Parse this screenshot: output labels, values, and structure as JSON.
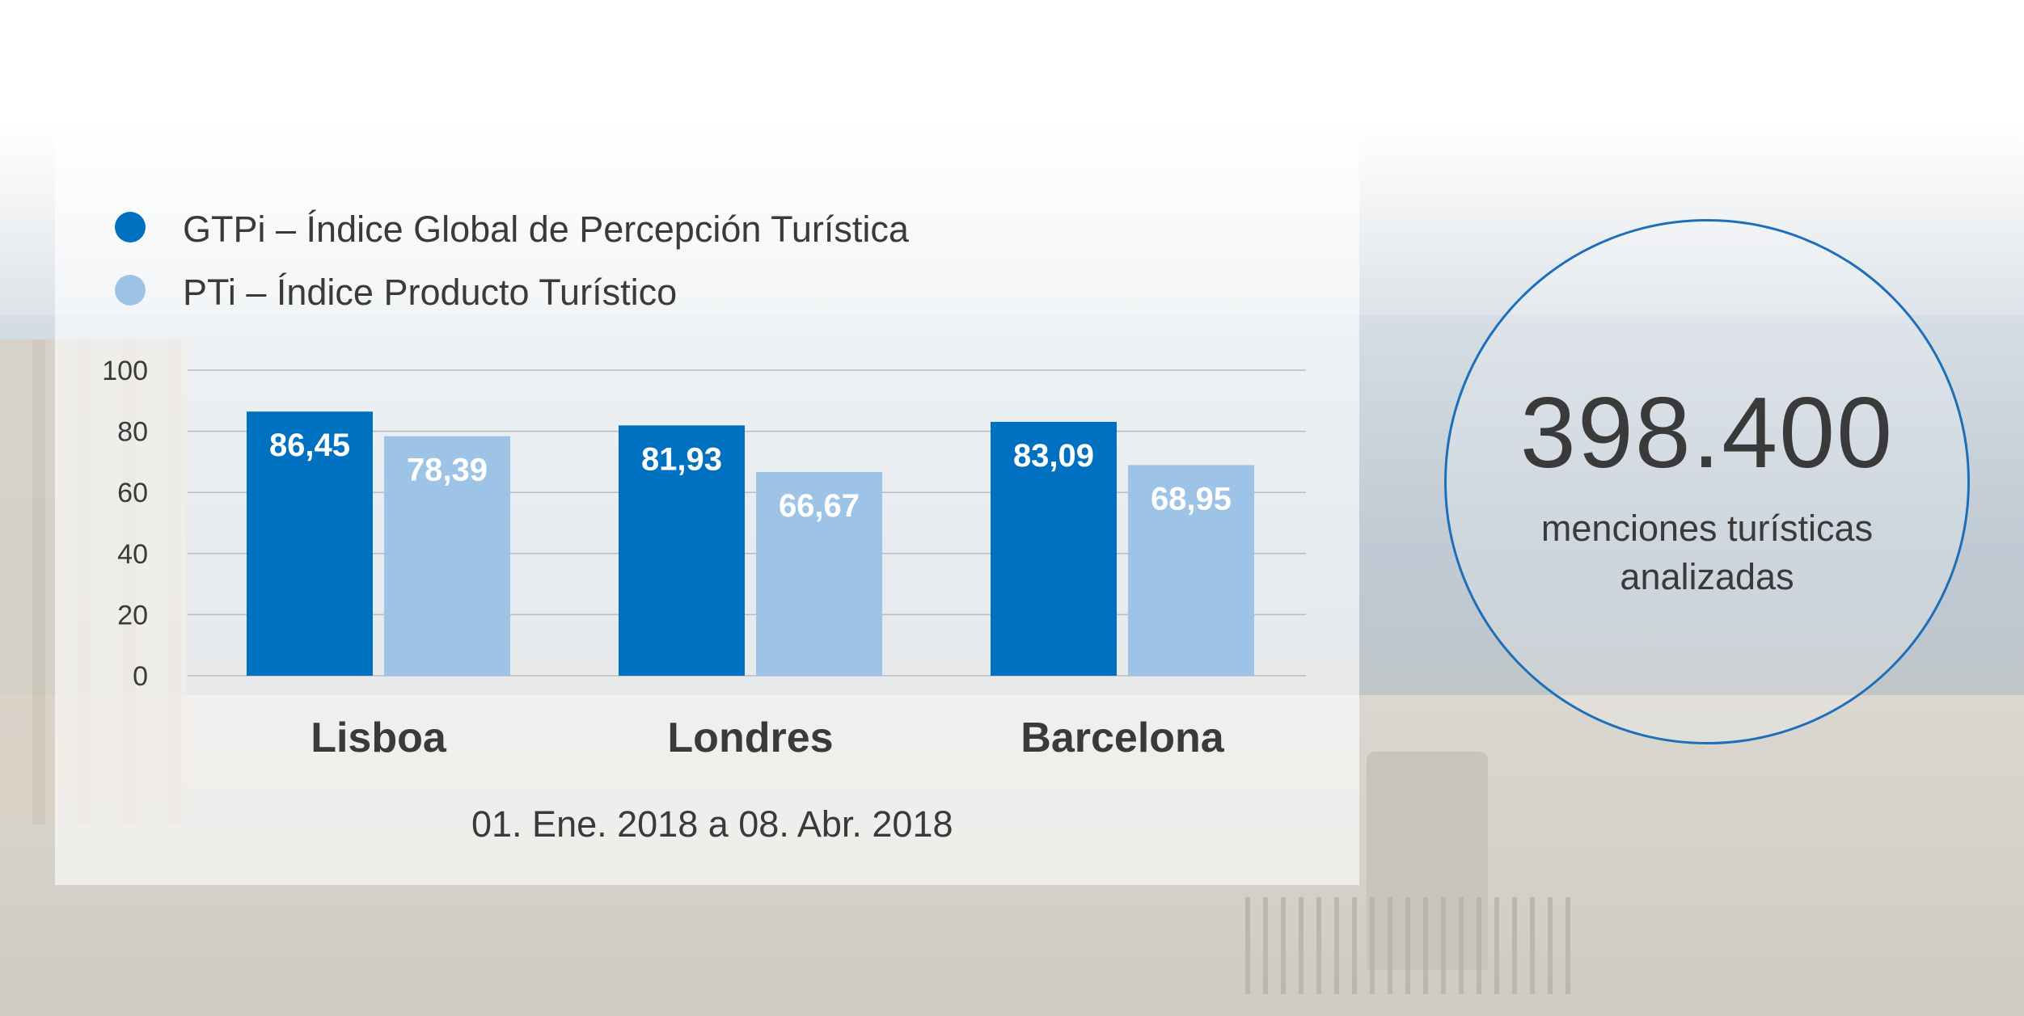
{
  "legend": [
    {
      "label": "GTPi – Índice Global de Percepción Turística",
      "color": "#0070c0"
    },
    {
      "label": "PTi – Índice Producto Turístico",
      "color": "#9dc3e6"
    }
  ],
  "date_range": "01. Ene. 2018 a 08. Abr. 2018",
  "stat": {
    "value": "398.400",
    "caption_line1": "menciones turísticas",
    "caption_line2": "analizadas"
  },
  "chart_data": {
    "type": "bar",
    "categories": [
      "Lisboa",
      "Londres",
      "Barcelona"
    ],
    "series": [
      {
        "name": "GTPi – Índice Global de Percepción Turística",
        "values": [
          86.45,
          81.93,
          83.09
        ],
        "labels": [
          "86,45",
          "81,93",
          "83,09"
        ],
        "color": "#0070c0"
      },
      {
        "name": "PTi – Índice Producto Turístico",
        "values": [
          78.39,
          66.67,
          68.95
        ],
        "labels": [
          "78,39",
          "66,67",
          "68,95"
        ],
        "color": "#9dc3e6"
      }
    ],
    "ylim": [
      0,
      100
    ],
    "yticks": [
      0,
      20,
      40,
      60,
      80,
      100
    ],
    "grid": true,
    "legend_position": "top-left",
    "title": "",
    "xlabel": "",
    "ylabel": ""
  }
}
